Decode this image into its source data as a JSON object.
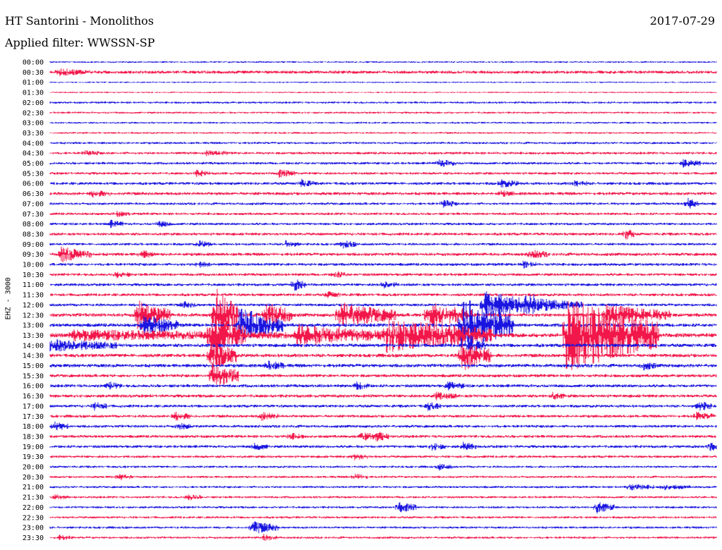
{
  "header": {
    "station": "HT Santorini - Monolithos",
    "date": "2017-07-29",
    "filter_label": "Applied filter: WWSSN-SP"
  },
  "chart_data": {
    "type": "helicorder",
    "channel_label": "EHZ - 3000",
    "colors": [
      "#1a16e0",
      "#f2174a"
    ],
    "times": [
      "00:00",
      "00:30",
      "01:00",
      "01:30",
      "02:00",
      "02:30",
      "03:00",
      "03:30",
      "04:00",
      "04:30",
      "05:00",
      "05:30",
      "06:00",
      "06:30",
      "07:00",
      "07:30",
      "08:00",
      "08:30",
      "09:00",
      "09:30",
      "10:00",
      "10:30",
      "11:00",
      "11:30",
      "12:00",
      "12:30",
      "13:00",
      "13:30",
      "14:00",
      "14:30",
      "15:00",
      "15:30",
      "16:00",
      "16:30",
      "17:00",
      "17:30",
      "18:00",
      "18:30",
      "19:00",
      "19:30",
      "20:00",
      "20:30",
      "21:00",
      "21:30",
      "22:00",
      "22:30",
      "23:00",
      "23:30"
    ],
    "x_unit": "minutes",
    "xlim": [
      0,
      30
    ],
    "noise": [
      1.2,
      2.2,
      1.0,
      1.0,
      1.5,
      1.4,
      1.3,
      1.3,
      1.6,
      1.8,
      1.8,
      1.8,
      2.0,
      2.2,
      1.8,
      1.8,
      1.8,
      2.0,
      1.8,
      2.2,
      2.0,
      2.0,
      2.0,
      2.0,
      2.0,
      2.5,
      2.5,
      3.0,
      2.5,
      2.5,
      2.5,
      2.2,
      2.2,
      2.2,
      2.0,
      2.0,
      2.0,
      2.0,
      2.0,
      1.8,
      1.6,
      1.6,
      1.6,
      1.6,
      1.6,
      1.6,
      1.6,
      1.6
    ],
    "events": [
      {
        "trace": 1,
        "t": 0.4,
        "amp": 4,
        "dur": 1.5
      },
      {
        "trace": 9,
        "t": 1.5,
        "amp": 3,
        "dur": 0.8
      },
      {
        "trace": 9,
        "t": 7.0,
        "amp": 3,
        "dur": 1.0
      },
      {
        "trace": 10,
        "t": 17.5,
        "amp": 5,
        "dur": 0.8
      },
      {
        "trace": 10,
        "t": 28.5,
        "amp": 5,
        "dur": 0.8
      },
      {
        "trace": 11,
        "t": 6.6,
        "amp": 4,
        "dur": 0.6
      },
      {
        "trace": 11,
        "t": 10.3,
        "amp": 5,
        "dur": 0.8
      },
      {
        "trace": 12,
        "t": 11.3,
        "amp": 5,
        "dur": 0.6
      },
      {
        "trace": 12,
        "t": 20.3,
        "amp": 5,
        "dur": 0.8
      },
      {
        "trace": 12,
        "t": 23.6,
        "amp": 4,
        "dur": 0.6
      },
      {
        "trace": 13,
        "t": 1.9,
        "amp": 4,
        "dur": 0.8
      },
      {
        "trace": 13,
        "t": 20.3,
        "amp": 3,
        "dur": 0.6
      },
      {
        "trace": 14,
        "t": 17.7,
        "amp": 5,
        "dur": 0.6
      },
      {
        "trace": 14,
        "t": 28.7,
        "amp": 8,
        "dur": 0.5
      },
      {
        "trace": 15,
        "t": 3.0,
        "amp": 3,
        "dur": 0.6
      },
      {
        "trace": 16,
        "t": 2.7,
        "amp": 5,
        "dur": 0.6
      },
      {
        "trace": 16,
        "t": 4.9,
        "amp": 4,
        "dur": 0.6
      },
      {
        "trace": 17,
        "t": 25.9,
        "amp": 8,
        "dur": 0.4
      },
      {
        "trace": 18,
        "t": 6.7,
        "amp": 4,
        "dur": 0.6
      },
      {
        "trace": 18,
        "t": 10.6,
        "amp": 4,
        "dur": 0.6
      },
      {
        "trace": 18,
        "t": 13.2,
        "amp": 5,
        "dur": 0.6
      },
      {
        "trace": 19,
        "t": 0.5,
        "amp": 10,
        "dur": 1.4
      },
      {
        "trace": 19,
        "t": 4.1,
        "amp": 5,
        "dur": 0.6
      },
      {
        "trace": 19,
        "t": 21.6,
        "amp": 6,
        "dur": 0.8
      },
      {
        "trace": 20,
        "t": 6.7,
        "amp": 4,
        "dur": 0.6
      },
      {
        "trace": 20,
        "t": 21.3,
        "amp": 4,
        "dur": 0.6
      },
      {
        "trace": 21,
        "t": 3.0,
        "amp": 4,
        "dur": 0.6
      },
      {
        "trace": 21,
        "t": 12.8,
        "amp": 4,
        "dur": 0.6
      },
      {
        "trace": 22,
        "t": 11.0,
        "amp": 8,
        "dur": 0.5
      },
      {
        "trace": 22,
        "t": 15.0,
        "amp": 5,
        "dur": 0.6
      },
      {
        "trace": 23,
        "t": 12.5,
        "amp": 4,
        "dur": 0.6
      },
      {
        "trace": 24,
        "t": 6.0,
        "amp": 4,
        "dur": 0.6
      },
      {
        "trace": 24,
        "t": 19.5,
        "amp": 20,
        "dur": 2.5
      },
      {
        "trace": 24,
        "t": 21.4,
        "amp": 10,
        "dur": 2.6
      },
      {
        "trace": 25,
        "t": 3.9,
        "amp": 22,
        "dur": 1.5
      },
      {
        "trace": 25,
        "t": 7.4,
        "amp": 40,
        "dur": 1.2
      },
      {
        "trace": 25,
        "t": 9.7,
        "amp": 20,
        "dur": 1.2
      },
      {
        "trace": 25,
        "t": 13.0,
        "amp": 18,
        "dur": 2.6
      },
      {
        "trace": 25,
        "t": 17.0,
        "amp": 20,
        "dur": 2.0
      },
      {
        "trace": 25,
        "t": 25.0,
        "amp": 14,
        "dur": 3.0
      },
      {
        "trace": 26,
        "t": 4.2,
        "amp": 14,
        "dur": 1.6
      },
      {
        "trace": 26,
        "t": 8.5,
        "amp": 25,
        "dur": 2.0
      },
      {
        "trace": 26,
        "t": 18.5,
        "amp": 40,
        "dur": 2.4
      },
      {
        "trace": 27,
        "t": 1.0,
        "amp": 6,
        "dur": 10
      },
      {
        "trace": 27,
        "t": 7.2,
        "amp": 26,
        "dur": 1.6
      },
      {
        "trace": 27,
        "t": 11.1,
        "amp": 14,
        "dur": 3.8
      },
      {
        "trace": 27,
        "t": 15.1,
        "amp": 24,
        "dur": 4.8
      },
      {
        "trace": 27,
        "t": 23.2,
        "amp": 55,
        "dur": 4.2
      },
      {
        "trace": 28,
        "t": 0.0,
        "amp": 8,
        "dur": 3.0
      },
      {
        "trace": 28,
        "t": 18.8,
        "amp": 10,
        "dur": 0.8
      },
      {
        "trace": 29,
        "t": 7.2,
        "amp": 24,
        "dur": 1.2
      },
      {
        "trace": 29,
        "t": 18.5,
        "amp": 22,
        "dur": 1.4
      },
      {
        "trace": 30,
        "t": 9.8,
        "amp": 6,
        "dur": 0.8
      },
      {
        "trace": 30,
        "t": 26.7,
        "amp": 5,
        "dur": 0.6
      },
      {
        "trace": 31,
        "t": 7.3,
        "amp": 20,
        "dur": 1.2
      },
      {
        "trace": 32,
        "t": 2.6,
        "amp": 5,
        "dur": 0.6
      },
      {
        "trace": 32,
        "t": 13.8,
        "amp": 5,
        "dur": 0.6
      },
      {
        "trace": 32,
        "t": 17.9,
        "amp": 5,
        "dur": 0.8
      },
      {
        "trace": 33,
        "t": 17.3,
        "amp": 5,
        "dur": 1.0
      },
      {
        "trace": 33,
        "t": 22.6,
        "amp": 4,
        "dur": 0.6
      },
      {
        "trace": 34,
        "t": 2.0,
        "amp": 5,
        "dur": 0.6
      },
      {
        "trace": 34,
        "t": 17.0,
        "amp": 5,
        "dur": 0.6
      },
      {
        "trace": 34,
        "t": 29.2,
        "amp": 7,
        "dur": 0.6
      },
      {
        "trace": 35,
        "t": 5.6,
        "amp": 5,
        "dur": 0.8
      },
      {
        "trace": 35,
        "t": 9.5,
        "amp": 5,
        "dur": 0.8
      },
      {
        "trace": 35,
        "t": 29.1,
        "amp": 5,
        "dur": 0.8
      },
      {
        "trace": 36,
        "t": 0.2,
        "amp": 6,
        "dur": 0.6
      },
      {
        "trace": 36,
        "t": 5.8,
        "amp": 4,
        "dur": 0.6
      },
      {
        "trace": 37,
        "t": 10.8,
        "amp": 4,
        "dur": 0.6
      },
      {
        "trace": 37,
        "t": 14.0,
        "amp": 5,
        "dur": 1.0
      },
      {
        "trace": 37,
        "t": 14.7,
        "amp": 5,
        "dur": 0.6
      },
      {
        "trace": 38,
        "t": 9.2,
        "amp": 5,
        "dur": 0.6
      },
      {
        "trace": 38,
        "t": 17.2,
        "amp": 5,
        "dur": 0.6
      },
      {
        "trace": 38,
        "t": 18.6,
        "amp": 5,
        "dur": 0.6
      },
      {
        "trace": 38,
        "t": 29.7,
        "amp": 6,
        "dur": 0.6
      },
      {
        "trace": 39,
        "t": 13.7,
        "amp": 4,
        "dur": 0.6
      },
      {
        "trace": 40,
        "t": 17.5,
        "amp": 4,
        "dur": 0.6
      },
      {
        "trace": 41,
        "t": 3.1,
        "amp": 4,
        "dur": 0.6
      },
      {
        "trace": 41,
        "t": 13.7,
        "amp": 4,
        "dur": 0.6
      },
      {
        "trace": 42,
        "t": 26.0,
        "amp": 4,
        "dur": 1.2
      },
      {
        "trace": 42,
        "t": 27.6,
        "amp": 3,
        "dur": 1.2
      },
      {
        "trace": 43,
        "t": 0.2,
        "amp": 3,
        "dur": 0.6
      },
      {
        "trace": 43,
        "t": 6.2,
        "amp": 4,
        "dur": 0.6
      },
      {
        "trace": 44,
        "t": 15.7,
        "amp": 8,
        "dur": 0.8
      },
      {
        "trace": 44,
        "t": 24.6,
        "amp": 8,
        "dur": 0.8
      },
      {
        "trace": 46,
        "t": 9.1,
        "amp": 9,
        "dur": 1.2
      },
      {
        "trace": 47,
        "t": 0.4,
        "amp": 3,
        "dur": 0.6
      },
      {
        "trace": 47,
        "t": 9.6,
        "amp": 4,
        "dur": 0.6
      }
    ]
  }
}
